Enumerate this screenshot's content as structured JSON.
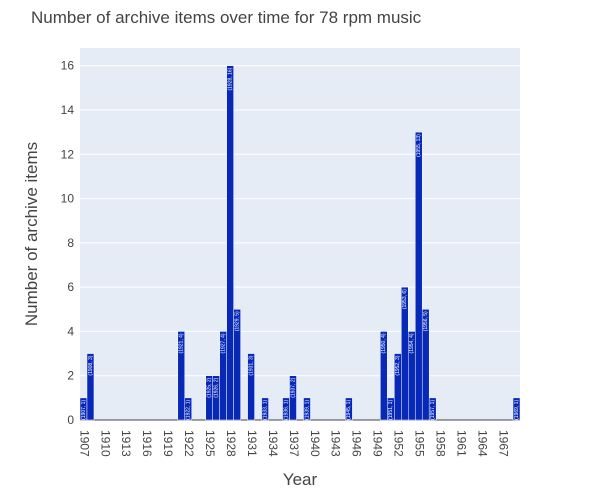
{
  "chart_data": {
    "type": "bar",
    "title": "Number of archive items over time for 78 rpm music",
    "xlabel": "Year",
    "ylabel": "Number of archive items",
    "ylim": [
      0,
      16.8
    ],
    "xlim": [
      1906.5,
      1969.5
    ],
    "y_ticks": [
      "0",
      "2",
      "4",
      "6",
      "8",
      "10",
      "12",
      "14",
      "16"
    ],
    "x_ticks": [
      "1907",
      "1910",
      "1913",
      "1916",
      "1919",
      "1922",
      "1925",
      "1928",
      "1931",
      "1934",
      "1937",
      "1940",
      "1943",
      "1946",
      "1949",
      "1952",
      "1955",
      "1958",
      "1961",
      "1964",
      "1967"
    ],
    "bar_color": "#0829b8",
    "plot_background": "#e5ecf6",
    "grid": true,
    "x": [
      1907,
      1908,
      1921,
      1922,
      1925,
      1926,
      1927,
      1928,
      1929,
      1931,
      1933,
      1936,
      1937,
      1939,
      1945,
      1950,
      1951,
      1952,
      1953,
      1954,
      1955,
      1956,
      1957,
      1969
    ],
    "values": [
      1,
      3,
      4,
      1,
      2,
      2,
      4,
      16,
      5,
      3,
      1,
      1,
      2,
      1,
      1,
      4,
      1,
      3,
      6,
      4,
      13,
      5,
      1,
      1
    ],
    "labels": [
      "(1907, 1)",
      "(1908, 3)",
      "(1921, 4)",
      "(1922, 1)",
      "(1925, 2)",
      "(1926, 2)",
      "(1927, 4)",
      "(1928, 16)",
      "(1929, 5)",
      "(1931, 3)",
      "(1933, 1)",
      "(1936, 1)",
      "(1937, 2)",
      "(1939, 1)",
      "(1945, 1)",
      "(1950, 4)",
      "(1951, 1)",
      "(1952, 3)",
      "(1953, 6)",
      "(1954, 4)",
      "(1955, 13)",
      "(1956, 5)",
      "(1957, 1)",
      "(1969, 1)"
    ]
  }
}
